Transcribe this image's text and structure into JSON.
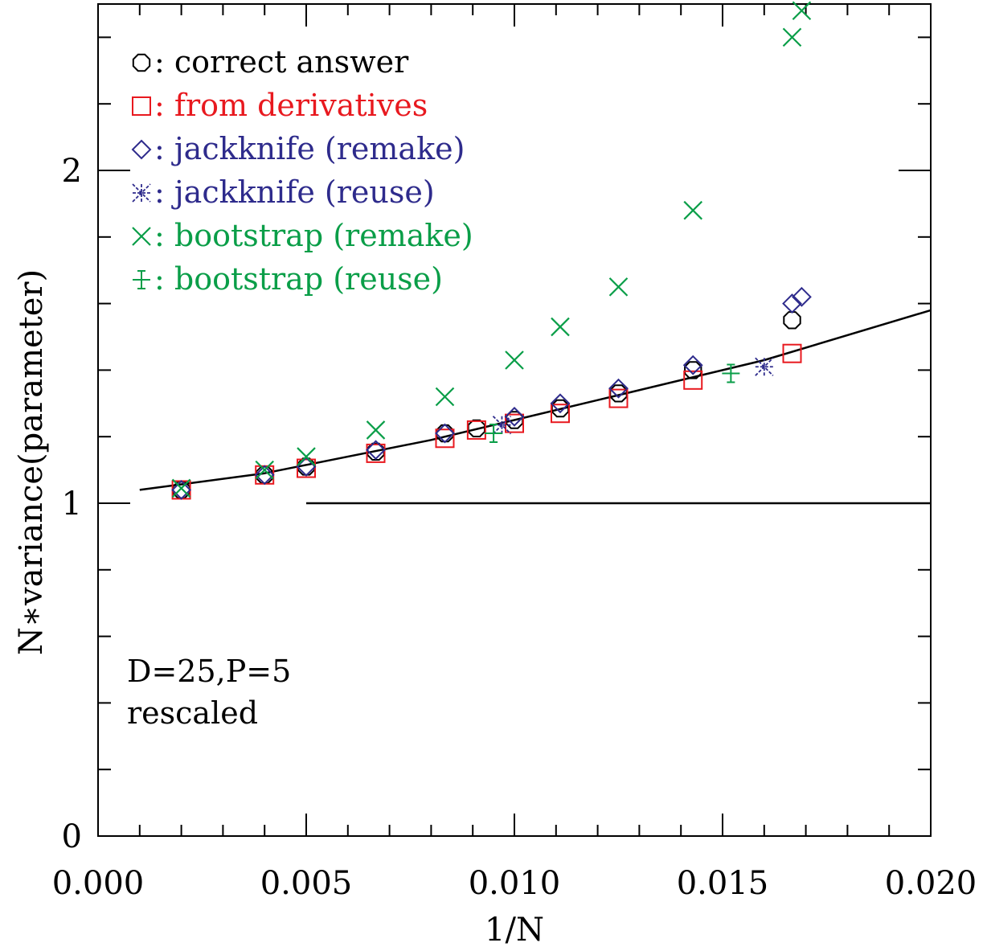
{
  "chart_data": {
    "type": "scatter",
    "title": "",
    "xlabel": "1/N",
    "ylabel": "N∗variance(parameter)",
    "xlim": [
      0.0,
      0.02
    ],
    "ylim": [
      0,
      2.5
    ],
    "x_ticks": [
      "0.000",
      "0.005",
      "0.010",
      "0.015",
      "0.020"
    ],
    "y_ticks": [
      "0",
      "1",
      "2"
    ],
    "grid": false,
    "legend_position": "top-left",
    "annotation": [
      "D=25,P=5",
      "rescaled"
    ],
    "colors": {
      "black": "#000000",
      "red": "#e8191f",
      "blue": "#2e2b8c",
      "green": "#0a9e48"
    },
    "reference_line": {
      "y": 1.0,
      "x_from": 0.005,
      "x_to": 0.02
    },
    "fit_curve": {
      "name": "",
      "points": [
        [
          0.001,
          1.04
        ],
        [
          0.004,
          1.09
        ],
        [
          0.008,
          1.19
        ],
        [
          0.012,
          1.31
        ],
        [
          0.016,
          1.43
        ],
        [
          0.02,
          1.58
        ]
      ]
    },
    "series": [
      {
        "name": "correct answer",
        "legend_label": "⬡: correct answer",
        "marker": "octagon",
        "color": "#000000",
        "points": [
          [
            0.002,
            1.04
          ],
          [
            0.004,
            1.085
          ],
          [
            0.005,
            1.11
          ],
          [
            0.00667,
            1.155
          ],
          [
            0.00833,
            1.21
          ],
          [
            0.00909,
            1.225
          ],
          [
            0.01,
            1.25
          ],
          [
            0.0111,
            1.285
          ],
          [
            0.0125,
            1.33
          ],
          [
            0.01429,
            1.4
          ],
          [
            0.01667,
            1.55
          ]
        ]
      },
      {
        "name": "from derivatives",
        "legend_label": "□: from derivatives",
        "marker": "square",
        "color": "#e8191f",
        "points": [
          [
            0.002,
            1.04
          ],
          [
            0.004,
            1.085
          ],
          [
            0.005,
            1.105
          ],
          [
            0.00667,
            1.15
          ],
          [
            0.00833,
            1.195
          ],
          [
            0.00909,
            1.22
          ],
          [
            0.01,
            1.24
          ],
          [
            0.0111,
            1.27
          ],
          [
            0.0125,
            1.315
          ],
          [
            0.01429,
            1.37
          ],
          [
            0.01667,
            1.45
          ]
        ]
      },
      {
        "name": "jackknife (remake)",
        "legend_label": "◇: jackknife (remake)",
        "marker": "diamond",
        "color": "#2e2b8c",
        "points": [
          [
            0.002,
            1.04
          ],
          [
            0.004,
            1.085
          ],
          [
            0.005,
            1.11
          ],
          [
            0.00667,
            1.16
          ],
          [
            0.00833,
            1.21
          ],
          [
            0.01,
            1.26
          ],
          [
            0.0111,
            1.3
          ],
          [
            0.0125,
            1.345
          ],
          [
            0.01429,
            1.415
          ],
          [
            0.01667,
            1.6
          ],
          [
            0.0169,
            1.62
          ]
        ]
      },
      {
        "name": "jackknife (reuse)",
        "legend_label": "❋: jackknife (reuse)",
        "marker": "asterisk",
        "color": "#2e2b8c",
        "points": [
          [
            0.0097,
            1.235
          ],
          [
            0.016,
            1.41
          ]
        ]
      },
      {
        "name": "bootstrap (remake)",
        "legend_label": "×: bootstrap (remake)",
        "marker": "cross",
        "color": "#0a9e48",
        "points": [
          [
            0.002,
            1.045
          ],
          [
            0.004,
            1.1
          ],
          [
            0.005,
            1.14
          ],
          [
            0.00667,
            1.22
          ],
          [
            0.00833,
            1.32
          ],
          [
            0.01,
            1.43
          ],
          [
            0.0111,
            1.53
          ],
          [
            0.0125,
            1.65
          ],
          [
            0.01429,
            1.88
          ],
          [
            0.01667,
            2.4
          ],
          [
            0.0169,
            2.48
          ]
        ]
      },
      {
        "name": "bootstrap (reuse)",
        "legend_label": "⊕: bootstrap (reuse)",
        "marker": "errorbar-plus",
        "color": "#0a9e48",
        "points": [
          [
            0.0095,
            1.21
          ],
          [
            0.0152,
            1.39
          ]
        ]
      }
    ]
  }
}
